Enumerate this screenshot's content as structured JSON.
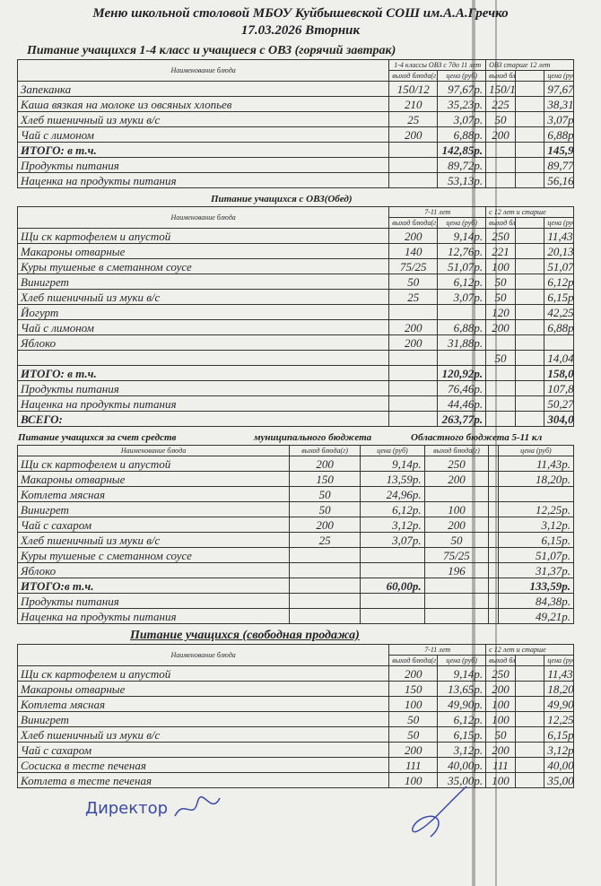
{
  "title": "Меню школьной столовой МБОУ Куйбышевской СОШ им.А.А.Гречко",
  "date": "17.03.2026  Вторник",
  "sections": [
    {
      "heading": "Питание учащихся 1-4  класс и учащиеся с ОВЗ (горячий завтрак)",
      "groups": [
        "1-4 классы ОВЗ с 7до 11 лет",
        "ОВЗ старше 12 лет"
      ],
      "header": [
        "Наименование блюда",
        "выход блюда(г)",
        "цена (руб)",
        "выход блюда(г)",
        "цена (руб)"
      ],
      "rows": [
        [
          "Запеканка",
          "150/12",
          "97,67р.",
          "150/12",
          "97,67р."
        ],
        [
          "Каша вязкая на молоке из овсяных хлопьев",
          "210",
          "35,23р.",
          "225",
          "38,31р."
        ],
        [
          "Хлеб пшеничный из муки в/с",
          "25",
          "3,07р.",
          "50",
          "3,07р."
        ],
        [
          "Чай с лимоном",
          "200",
          "6,88р.",
          "200",
          "6,88р."
        ],
        [
          "ИТОГО: в т.ч.",
          "",
          "142,85р.",
          "",
          "145,93р.",
          "b"
        ],
        [
          "Продукты питания",
          "",
          "89,72р.",
          "",
          "89,77р."
        ],
        [
          "Наценка на продукты питания",
          "",
          "53,13р.",
          "",
          "56,16р."
        ]
      ]
    },
    {
      "heading": "Питание учащихся  с ОВЗ(Обед)",
      "groups": [
        "7-11 лет",
        "с 12 лет и старше"
      ],
      "header": [
        "Наименование блюда",
        "выход блюда(г)",
        "цена (руб)",
        "выход блюда(г)",
        "цена (руб)"
      ],
      "rows": [
        [
          "Щи ск картофелем и апустой",
          "200",
          "9,14р.",
          "250",
          "11,43р."
        ],
        [
          "Макароны отварные",
          "140",
          "12,76р.",
          "221",
          "20,13р."
        ],
        [
          "Куры тушеные в сметанном соусе",
          "75/25",
          "51,07р.",
          "100",
          "51,07р."
        ],
        [
          "Винигрет",
          "50",
          "6,12р.",
          "50",
          "6,12р."
        ],
        [
          "Хлеб пшеничный из муки в/с",
          "25",
          "3,07р.",
          "50",
          "6,15р."
        ],
        [
          "Йогурт",
          "",
          "",
          "120",
          "42,25р."
        ],
        [
          "Чай с лимоном",
          "200",
          "6,88р.",
          "200",
          "6,88р."
        ],
        [
          "Яблоко",
          "200",
          "31,88р.",
          "",
          ""
        ],
        [
          "",
          "",
          "",
          "50",
          "14,04р."
        ],
        [
          "ИТОГО: в т.ч.",
          "",
          "120,92р.",
          "",
          "158,07р.",
          "b"
        ],
        [
          "Продукты питания",
          "",
          "76,46р.",
          "",
          "107,80р."
        ],
        [
          "Наценка на продукты питания",
          "",
          "44,46р.",
          "",
          "50,27р."
        ],
        [
          "ВСЕГО:",
          "",
          "263,77р.",
          "",
          "304,00р.",
          "b"
        ]
      ]
    },
    {
      "heading": "Питание учащихся за счет средств",
      "heading_mid": "муниципального бюджета",
      "heading_right": "Областного бюджета 5-11 кл",
      "header": [
        "Наименование блюда",
        "выход блюда(г)",
        "цена (руб)",
        "выход блюда(г)",
        "цена (руб)"
      ],
      "rows": [
        [
          "Щи ск картофелем и апустой",
          "200",
          "9,14р.",
          "250",
          "11,43р."
        ],
        [
          "Макароны отварные",
          "150",
          "13,59р.",
          "200",
          "18,20р."
        ],
        [
          "Котлета мясная",
          "50",
          "24,96р.",
          "",
          ""
        ],
        [
          "Винигрет",
          "50",
          "6,12р.",
          "100",
          "12,25р."
        ],
        [
          "Чай с сахаром",
          "200",
          "3,12р.",
          "200",
          "3,12р."
        ],
        [
          "Хлеб пшеничный из муки в/с",
          "25",
          "3,07р.",
          "50",
          "6,15р."
        ],
        [
          "Куры тушеные с сметанном соусе",
          "",
          "",
          "75/25",
          "51,07р."
        ],
        [
          "Яблоко",
          "",
          "",
          "196",
          "31,37р."
        ],
        [
          "ИТОГО:в т.ч.",
          "",
          "60,00р.",
          "",
          "133,59р.",
          "b"
        ],
        [
          "Продукты питания",
          "",
          "",
          "",
          "84,38р."
        ],
        [
          "Наценка на продукты питания",
          "",
          "",
          "",
          "49,21р."
        ]
      ]
    },
    {
      "heading": "Питание учащихся (свободная продажа)",
      "groups": [
        "7-11 лет",
        "с 12 лет и старше"
      ],
      "header": [
        "Наименование блюда",
        "выход блюда(г)",
        "цена (руб)",
        "выход блюда(г)",
        "цена (руб)"
      ],
      "rows": [
        [
          "Щи ск картофелем и апустой",
          "200",
          "9,14р.",
          "250",
          "11,43р."
        ],
        [
          "Макароны отварные",
          "150",
          "13,65р.",
          "200",
          "18,20р."
        ],
        [
          "Котлета  мясная",
          "100",
          "49,90р.",
          "100",
          "49,90р."
        ],
        [
          "Винигрет",
          "50",
          "6,12р.",
          "100",
          "12,25р."
        ],
        [
          "Хлеб пшеничный из муки в/с",
          "50",
          "6,15р.",
          "50",
          "6,15р."
        ],
        [
          "Чай с сахаром",
          "200",
          "3,12р.",
          "200",
          "3,12р."
        ],
        [
          "Сосиска в тесте печеная",
          "111",
          "40,00р.",
          "111",
          "40,00р."
        ],
        [
          "Котлета в тесте печеная",
          "100",
          "35,00р.",
          "100",
          "35,00р."
        ]
      ]
    }
  ],
  "signature": "Директор"
}
